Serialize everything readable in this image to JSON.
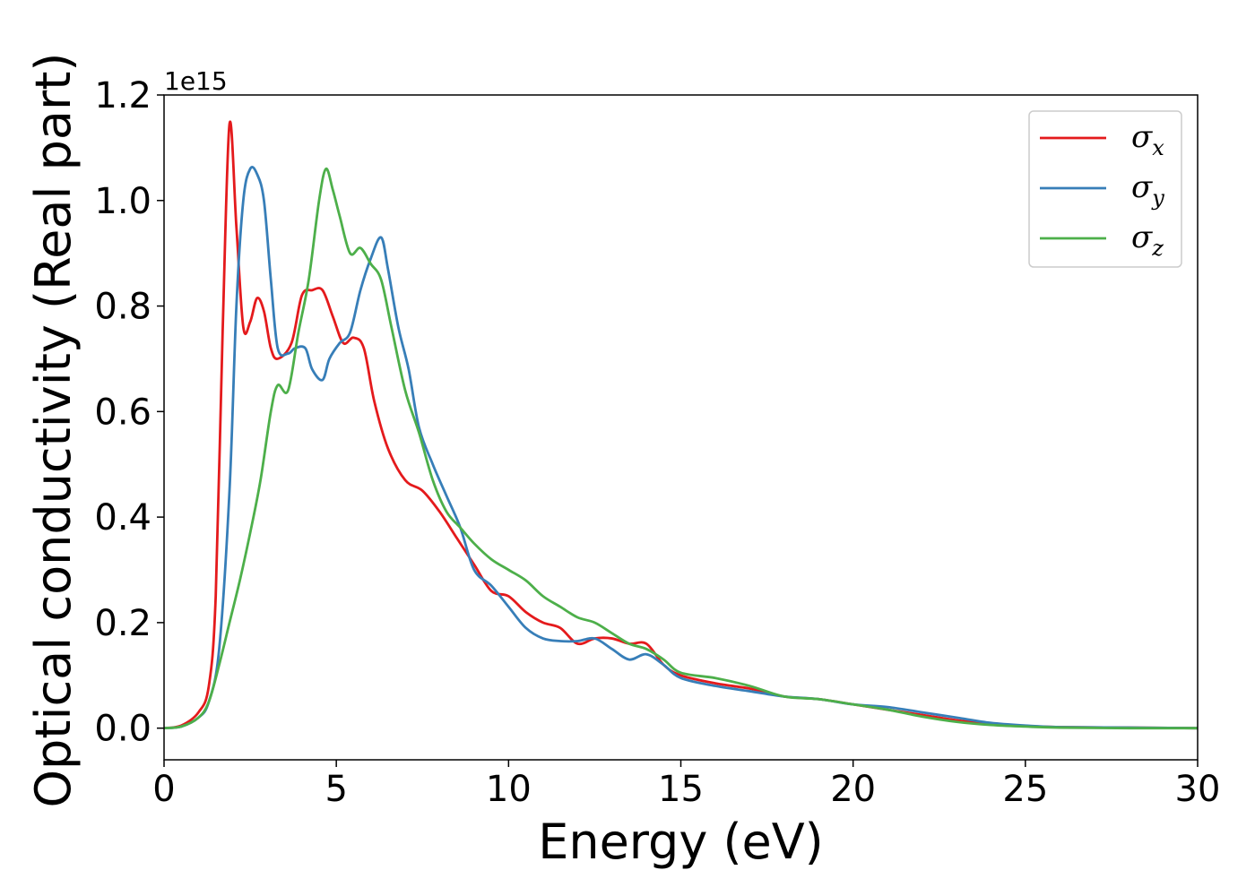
{
  "chart_data": {
    "type": "line",
    "title": "",
    "xlabel": "Energy (eV)",
    "ylabel": "Optical conductivity (Real part)",
    "y_offset_text": "1e15",
    "xlim": [
      0,
      30
    ],
    "ylim": [
      -0.06,
      1.2
    ],
    "xticks": [
      "0",
      "5",
      "10",
      "15",
      "20",
      "25",
      "30"
    ],
    "yticks": [
      "0.0",
      "0.2",
      "0.4",
      "0.6",
      "0.8",
      "1.0",
      "1.2"
    ],
    "grid": false,
    "legend_position": "top-right",
    "series": [
      {
        "name": "σ",
        "subscript": "x",
        "color": "#e41a1c",
        "x": [
          0,
          0.5,
          1.0,
          1.3,
          1.5,
          1.7,
          1.9,
          2.1,
          2.3,
          2.5,
          2.7,
          2.9,
          3.1,
          3.3,
          3.7,
          4.0,
          4.3,
          4.6,
          4.9,
          5.2,
          5.5,
          5.8,
          6.1,
          6.5,
          7.0,
          7.5,
          8.0,
          8.5,
          9.0,
          9.5,
          10.0,
          10.5,
          11.0,
          11.5,
          12.0,
          12.5,
          13.0,
          13.5,
          14.0,
          14.5,
          15.0,
          16.0,
          17.0,
          18.0,
          19.0,
          20.0,
          21.0,
          22.0,
          23.0,
          24.0,
          25.0,
          26.0,
          28.0,
          30.0
        ],
        "y": [
          0.0,
          0.005,
          0.03,
          0.08,
          0.25,
          0.75,
          1.145,
          0.95,
          0.76,
          0.77,
          0.815,
          0.79,
          0.72,
          0.7,
          0.73,
          0.82,
          0.83,
          0.83,
          0.78,
          0.73,
          0.74,
          0.72,
          0.62,
          0.53,
          0.47,
          0.45,
          0.41,
          0.36,
          0.31,
          0.26,
          0.25,
          0.22,
          0.2,
          0.19,
          0.16,
          0.17,
          0.17,
          0.16,
          0.16,
          0.12,
          0.1,
          0.085,
          0.075,
          0.06,
          0.055,
          0.045,
          0.035,
          0.025,
          0.015,
          0.008,
          0.004,
          0.002,
          0.001,
          0.0
        ]
      },
      {
        "name": "σ",
        "subscript": "y",
        "color": "#377eb8",
        "x": [
          0,
          0.5,
          1.0,
          1.3,
          1.6,
          1.9,
          2.1,
          2.3,
          2.5,
          2.7,
          2.9,
          3.1,
          3.3,
          3.6,
          3.8,
          4.1,
          4.3,
          4.6,
          4.8,
          5.1,
          5.4,
          5.7,
          6.0,
          6.3,
          6.5,
          6.8,
          7.1,
          7.4,
          7.8,
          8.2,
          8.6,
          9.0,
          9.5,
          10.0,
          10.5,
          11.0,
          11.5,
          12.0,
          12.5,
          13.0,
          13.5,
          14.0,
          14.5,
          15.0,
          16.0,
          17.0,
          18.0,
          19.0,
          20.0,
          21.0,
          22.0,
          23.0,
          24.0,
          25.0,
          26.0,
          28.0,
          30.0
        ],
        "y": [
          0.0,
          0.003,
          0.02,
          0.05,
          0.15,
          0.45,
          0.8,
          1.0,
          1.06,
          1.05,
          1.0,
          0.85,
          0.72,
          0.71,
          0.72,
          0.72,
          0.68,
          0.66,
          0.7,
          0.73,
          0.75,
          0.83,
          0.89,
          0.93,
          0.87,
          0.76,
          0.68,
          0.57,
          0.5,
          0.44,
          0.38,
          0.3,
          0.27,
          0.23,
          0.19,
          0.17,
          0.165,
          0.165,
          0.17,
          0.15,
          0.13,
          0.14,
          0.12,
          0.095,
          0.08,
          0.07,
          0.06,
          0.055,
          0.045,
          0.04,
          0.03,
          0.02,
          0.01,
          0.005,
          0.002,
          0.001,
          0.0
        ]
      },
      {
        "name": "σ",
        "subscript": "z",
        "color": "#4daf4a",
        "x": [
          0,
          0.5,
          1.0,
          1.3,
          1.6,
          1.9,
          2.2,
          2.5,
          2.8,
          3.1,
          3.3,
          3.6,
          3.9,
          4.2,
          4.5,
          4.7,
          4.9,
          5.1,
          5.4,
          5.7,
          6.0,
          6.3,
          6.6,
          7.0,
          7.4,
          7.8,
          8.2,
          8.6,
          9.0,
          9.5,
          10.0,
          10.5,
          11.0,
          11.5,
          12.0,
          12.5,
          13.0,
          13.5,
          14.0,
          14.5,
          15.0,
          16.0,
          17.0,
          18.0,
          19.0,
          20.0,
          21.0,
          22.0,
          23.0,
          24.0,
          25.0,
          26.0,
          28.0,
          30.0
        ],
        "y": [
          0.0,
          0.003,
          0.02,
          0.05,
          0.12,
          0.2,
          0.28,
          0.37,
          0.47,
          0.6,
          0.65,
          0.64,
          0.75,
          0.85,
          1.0,
          1.06,
          1.02,
          0.97,
          0.9,
          0.91,
          0.88,
          0.85,
          0.76,
          0.64,
          0.56,
          0.47,
          0.41,
          0.38,
          0.35,
          0.32,
          0.3,
          0.28,
          0.25,
          0.23,
          0.21,
          0.2,
          0.18,
          0.16,
          0.15,
          0.13,
          0.105,
          0.095,
          0.08,
          0.06,
          0.055,
          0.045,
          0.035,
          0.022,
          0.012,
          0.006,
          0.003,
          0.001,
          0.0,
          0.0
        ]
      }
    ]
  }
}
